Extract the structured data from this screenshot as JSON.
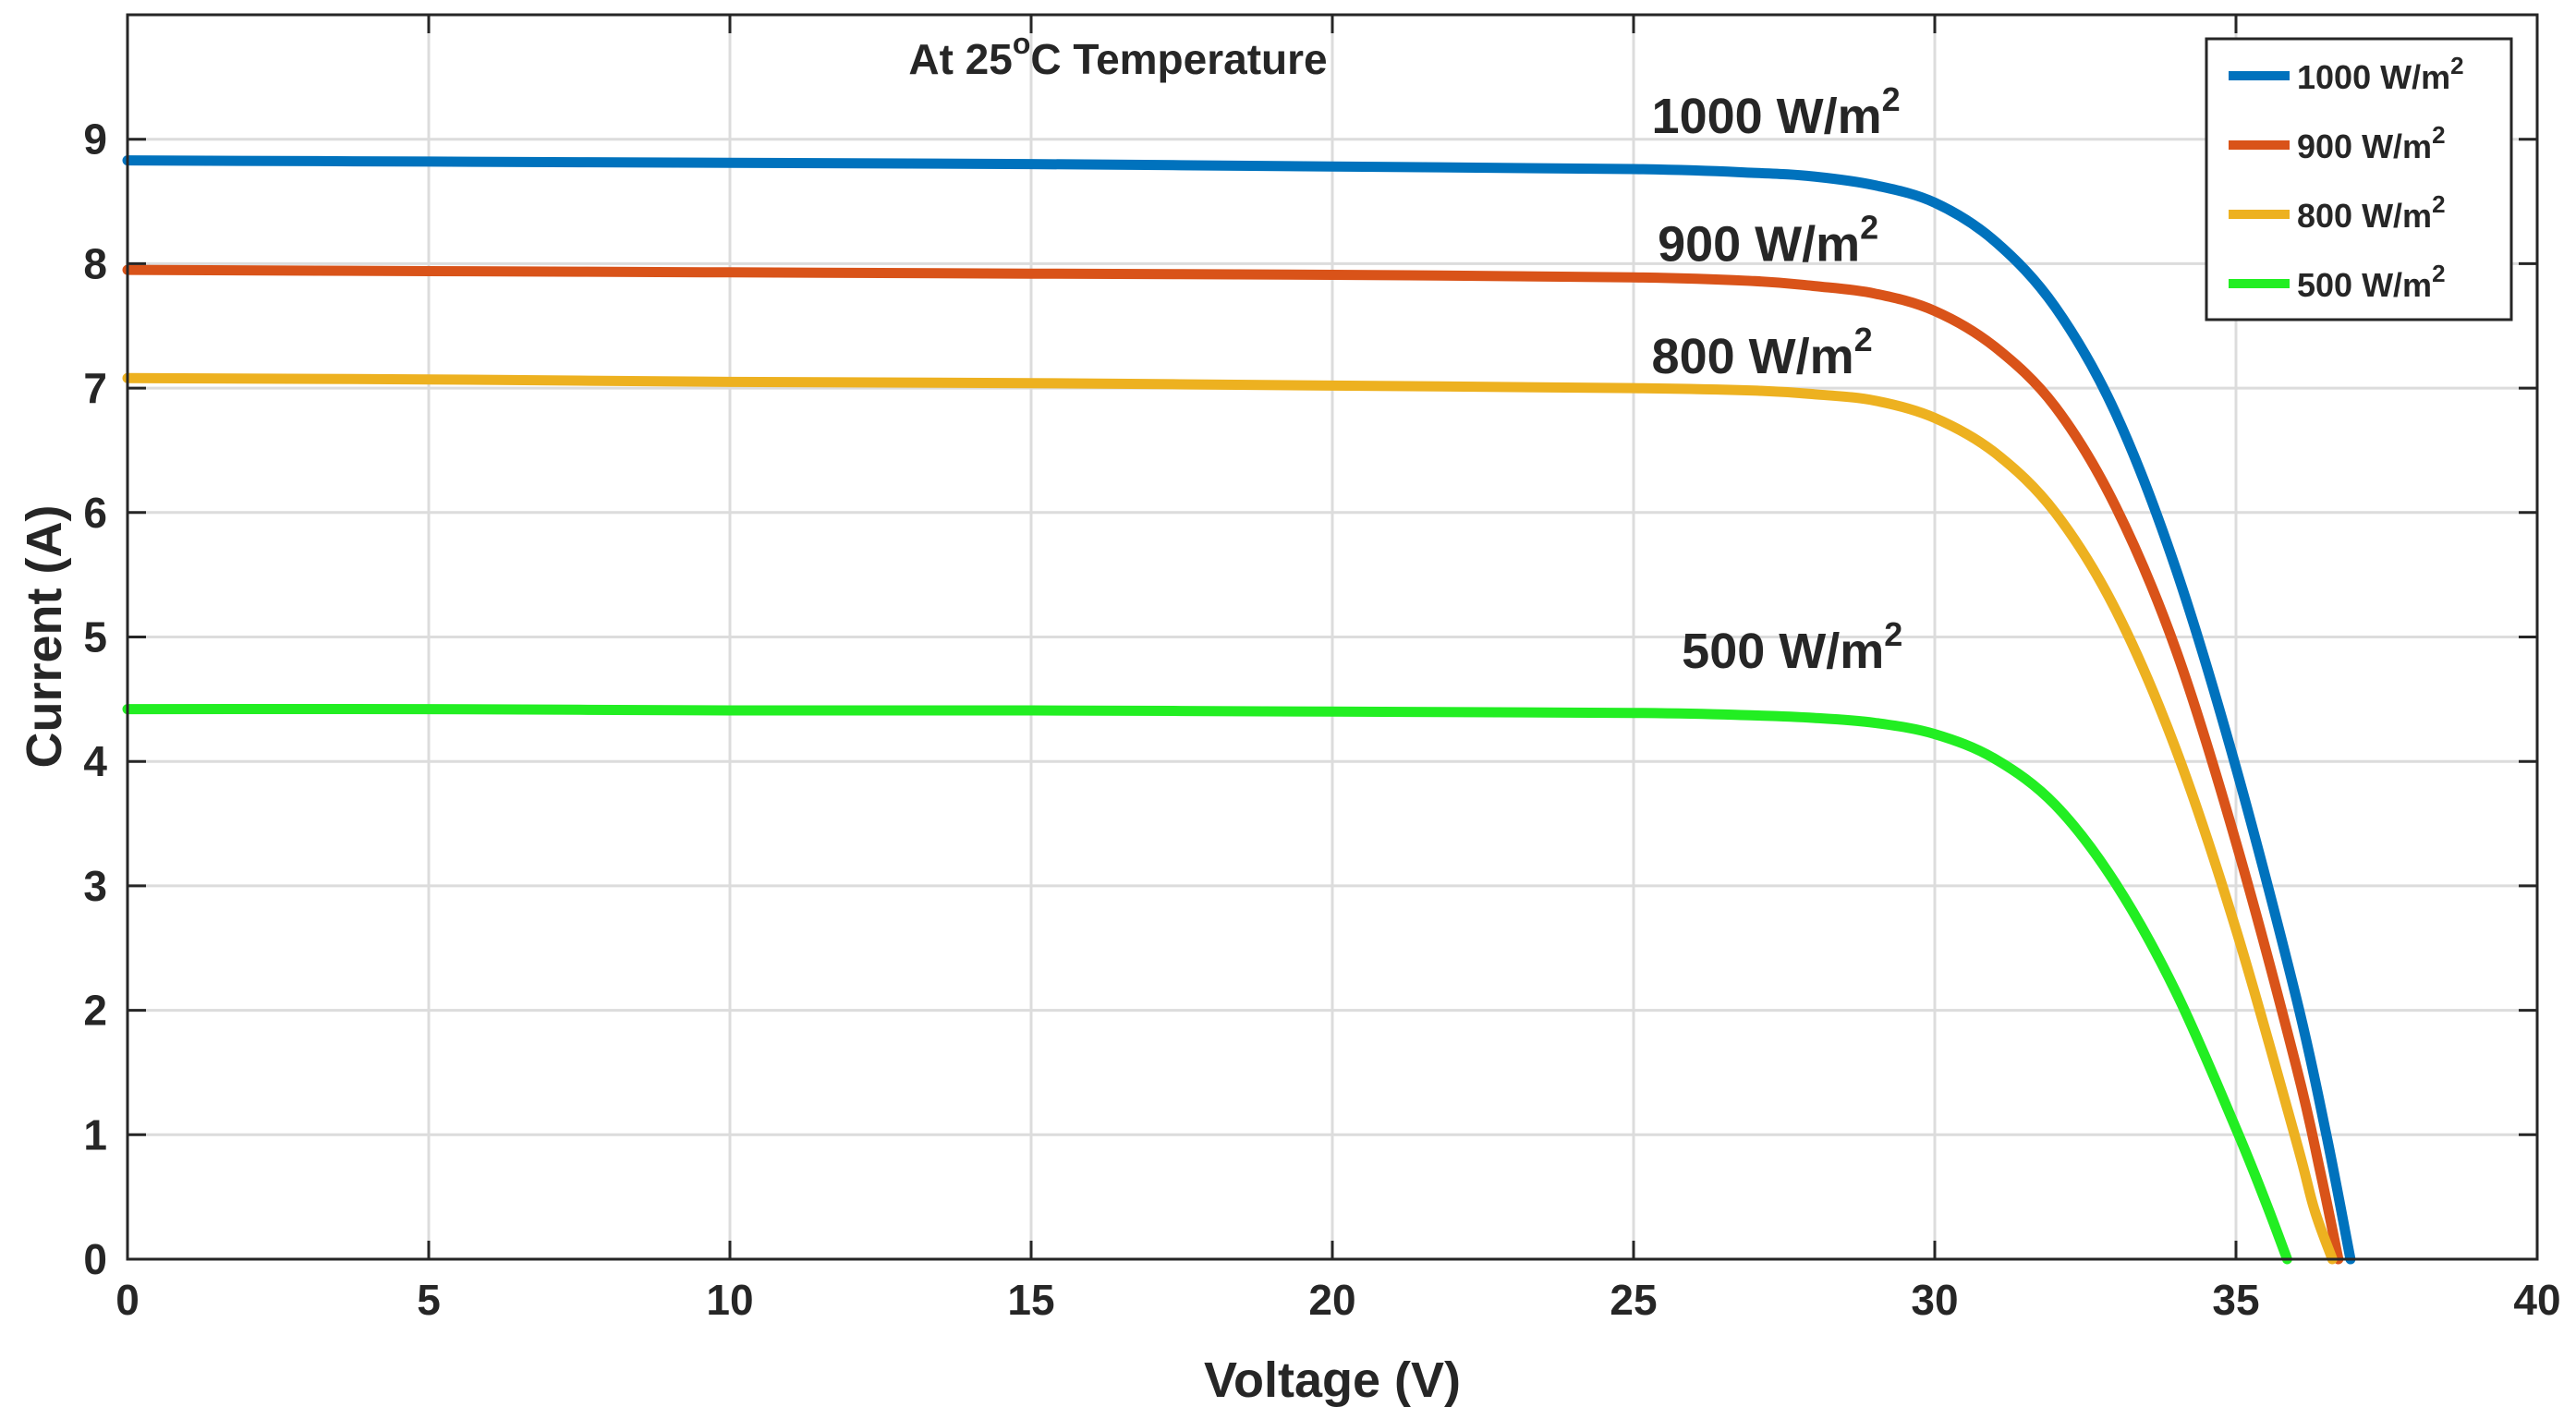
{
  "chart_data": {
    "type": "line",
    "title": "At 25°C Temperature",
    "title_parts": {
      "prefix": "At 25",
      "superscript": "o",
      "suffix": "C Temperature"
    },
    "xlabel": "Voltage (V)",
    "ylabel": "Current (A)",
    "xlim": [
      0,
      40
    ],
    "ylim": [
      0,
      10
    ],
    "xticks": [
      0,
      5,
      10,
      15,
      20,
      25,
      30,
      35,
      40
    ],
    "yticks": [
      0,
      1,
      2,
      3,
      4,
      5,
      6,
      7,
      8,
      9
    ],
    "grid": true,
    "legend_position": "top-right",
    "unit_base": "W/m",
    "unit_exponent": "2",
    "series": [
      {
        "name": "1000 W/m2",
        "value_label": "1000",
        "color": "#0072BD",
        "points": [
          [
            0,
            8.83
          ],
          [
            5,
            8.82
          ],
          [
            10,
            8.81
          ],
          [
            15,
            8.8
          ],
          [
            20,
            8.78
          ],
          [
            25,
            8.76
          ],
          [
            27,
            8.73
          ],
          [
            28,
            8.7
          ],
          [
            29,
            8.63
          ],
          [
            30,
            8.49
          ],
          [
            31,
            8.18
          ],
          [
            32,
            7.65
          ],
          [
            33,
            6.8
          ],
          [
            34,
            5.55
          ],
          [
            35,
            3.95
          ],
          [
            36,
            2.1
          ],
          [
            36.5,
            1.0
          ],
          [
            36.9,
            0.0
          ]
        ]
      },
      {
        "name": "900 W/m2",
        "value_label": "900",
        "color": "#D95319",
        "points": [
          [
            0,
            7.95
          ],
          [
            5,
            7.94
          ],
          [
            10,
            7.93
          ],
          [
            15,
            7.92
          ],
          [
            20,
            7.91
          ],
          [
            25,
            7.89
          ],
          [
            27,
            7.86
          ],
          [
            28,
            7.82
          ],
          [
            29,
            7.76
          ],
          [
            30,
            7.62
          ],
          [
            31,
            7.33
          ],
          [
            32,
            6.85
          ],
          [
            33,
            6.05
          ],
          [
            34,
            4.9
          ],
          [
            35,
            3.35
          ],
          [
            36,
            1.55
          ],
          [
            36.4,
            0.7
          ],
          [
            36.7,
            0.0
          ]
        ]
      },
      {
        "name": "800 W/m2",
        "value_label": "800",
        "color": "#EDB120",
        "points": [
          [
            0,
            7.08
          ],
          [
            5,
            7.07
          ],
          [
            10,
            7.05
          ],
          [
            15,
            7.04
          ],
          [
            20,
            7.02
          ],
          [
            25,
            7.0
          ],
          [
            27,
            6.98
          ],
          [
            28,
            6.95
          ],
          [
            29,
            6.9
          ],
          [
            30,
            6.76
          ],
          [
            31,
            6.48
          ],
          [
            32,
            6.0
          ],
          [
            33,
            5.22
          ],
          [
            34,
            4.1
          ],
          [
            35,
            2.65
          ],
          [
            36,
            0.95
          ],
          [
            36.3,
            0.4
          ],
          [
            36.6,
            0.0
          ]
        ]
      },
      {
        "name": "500 W/m2",
        "value_label": "500",
        "color": "#22EE22",
        "points": [
          [
            0,
            4.42
          ],
          [
            5,
            4.42
          ],
          [
            10,
            4.41
          ],
          [
            15,
            4.41
          ],
          [
            20,
            4.4
          ],
          [
            25,
            4.39
          ],
          [
            27,
            4.37
          ],
          [
            28,
            4.35
          ],
          [
            29,
            4.31
          ],
          [
            30,
            4.22
          ],
          [
            31,
            4.02
          ],
          [
            32,
            3.65
          ],
          [
            33,
            3.02
          ],
          [
            34,
            2.15
          ],
          [
            35,
            1.05
          ],
          [
            35.5,
            0.45
          ],
          [
            35.85,
            0.0
          ]
        ]
      }
    ],
    "annotations": [
      {
        "series_index": 0,
        "x": 25.3,
        "y": 9.05
      },
      {
        "series_index": 1,
        "x": 25.4,
        "y": 8.02
      },
      {
        "series_index": 2,
        "x": 25.3,
        "y": 7.12
      },
      {
        "series_index": 3,
        "x": 25.8,
        "y": 4.75
      }
    ]
  }
}
